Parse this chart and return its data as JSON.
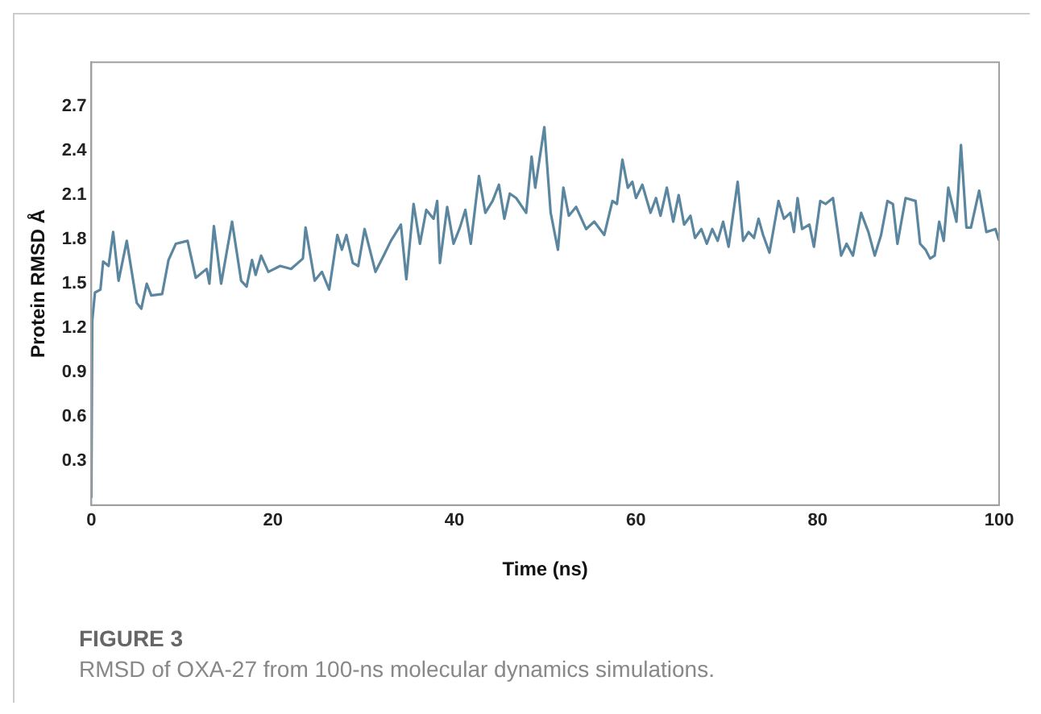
{
  "chart_data": {
    "type": "line",
    "xlabel": "Time (ns)",
    "ylabel": "Protein RMSD Å",
    "annotations": [
      "FIGURE 3",
      "RMSD of OXA-27 from 100-ns molecular dynamics simulations."
    ],
    "xlim": [
      0,
      100
    ],
    "xticks": [
      0,
      20,
      40,
      60,
      80,
      100
    ],
    "ylim": [
      0,
      3
    ],
    "yticks": [
      0.3,
      0.6,
      0.9,
      1.2,
      1.5,
      1.8,
      2.1,
      2.4,
      2.7
    ],
    "grid": false,
    "legend": false,
    "marker": "none",
    "line_style": "solid",
    "series": [
      {
        "color": "#5b86a0",
        "x": [
          0,
          0.1,
          0.4,
          1.0,
          1.3,
          1.9,
          2.4,
          3.0,
          3.9,
          5.0,
          5.5,
          6.1,
          6.6,
          7.8,
          8.5,
          9.3,
          10.6,
          11.5,
          12.7,
          13.0,
          13.5,
          14.3,
          15.5,
          16.5,
          17.1,
          17.7,
          18.1,
          18.7,
          19.5,
          20.8,
          22.0,
          23.3,
          23.6,
          24.6,
          25.4,
          26.2,
          27.1,
          27.6,
          28.1,
          28.8,
          29.4,
          30.1,
          31.3,
          32.2,
          33.0,
          34.1,
          34.7,
          35.5,
          36.2,
          36.9,
          37.7,
          38.1,
          38.4,
          39.2,
          39.9,
          40.6,
          41.2,
          41.8,
          42.7,
          43.4,
          44.2,
          44.9,
          45.5,
          46.1,
          46.8,
          47.9,
          48.5,
          48.9,
          49.9,
          50.6,
          51.4,
          52.0,
          52.6,
          53.4,
          54.5,
          55.4,
          56.5,
          57.4,
          57.9,
          58.5,
          59.1,
          59.6,
          60.0,
          60.7,
          61.6,
          62.2,
          62.7,
          63.4,
          64.1,
          64.7,
          65.3,
          66.0,
          66.5,
          67.2,
          67.8,
          68.4,
          69.0,
          69.6,
          70.2,
          71.2,
          71.8,
          72.4,
          73.0,
          73.5,
          74.0,
          74.7,
          75.7,
          76.3,
          77.0,
          77.4,
          77.8,
          78.3,
          79.1,
          79.6,
          80.3,
          80.9,
          81.7,
          82.6,
          83.2,
          83.9,
          84.8,
          85.6,
          86.3,
          87.0,
          87.7,
          88.3,
          88.8,
          89.7,
          90.8,
          91.3,
          91.9,
          92.4,
          92.9,
          93.4,
          93.9,
          94.4,
          95.3,
          95.8,
          96.4,
          96.9,
          97.8,
          98.6,
          99.6,
          100
        ],
        "values": [
          0.05,
          1.25,
          1.44,
          1.46,
          1.65,
          1.62,
          1.85,
          1.52,
          1.79,
          1.37,
          1.33,
          1.5,
          1.42,
          1.43,
          1.66,
          1.77,
          1.79,
          1.54,
          1.6,
          1.5,
          1.89,
          1.5,
          1.92,
          1.52,
          1.48,
          1.66,
          1.56,
          1.69,
          1.58,
          1.62,
          1.6,
          1.67,
          1.88,
          1.52,
          1.58,
          1.46,
          1.83,
          1.73,
          1.83,
          1.64,
          1.62,
          1.87,
          1.58,
          1.69,
          1.79,
          1.9,
          1.53,
          2.04,
          1.77,
          2.0,
          1.94,
          2.06,
          1.64,
          2.02,
          1.77,
          1.88,
          2.0,
          1.77,
          2.23,
          1.98,
          2.06,
          2.17,
          1.94,
          2.11,
          2.08,
          1.98,
          2.36,
          2.15,
          2.56,
          1.98,
          1.73,
          2.15,
          1.96,
          2.02,
          1.87,
          1.92,
          1.83,
          2.06,
          2.04,
          2.34,
          2.15,
          2.19,
          2.08,
          2.17,
          1.98,
          2.08,
          1.96,
          2.15,
          1.92,
          2.1,
          1.9,
          1.96,
          1.81,
          1.87,
          1.77,
          1.87,
          1.79,
          1.92,
          1.75,
          2.19,
          1.79,
          1.85,
          1.81,
          1.94,
          1.83,
          1.71,
          2.06,
          1.94,
          1.98,
          1.85,
          2.08,
          1.87,
          1.9,
          1.75,
          2.06,
          2.04,
          2.08,
          1.69,
          1.77,
          1.69,
          1.98,
          1.85,
          1.69,
          1.83,
          2.06,
          2.04,
          1.77,
          2.08,
          2.06,
          1.77,
          1.73,
          1.67,
          1.69,
          1.92,
          1.79,
          2.15,
          1.92,
          2.44,
          1.88,
          1.88,
          2.13,
          1.85,
          1.87,
          1.79
        ]
      }
    ]
  }
}
